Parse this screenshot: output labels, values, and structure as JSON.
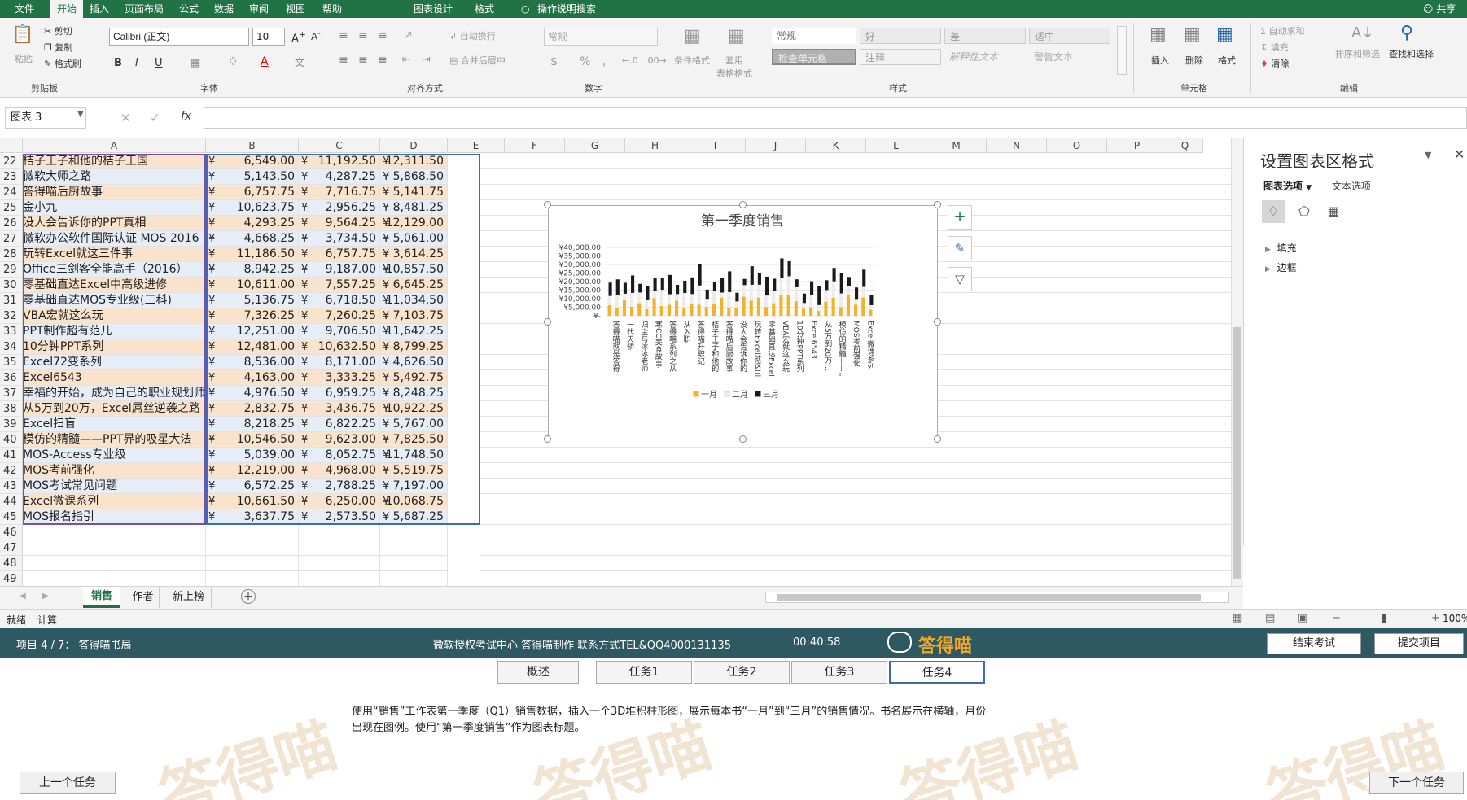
{
  "menu": {
    "items": [
      "文件",
      "开始",
      "插入",
      "页面布局",
      "公式",
      "数据",
      "审阅",
      "视图",
      "帮助",
      "图表设计",
      "格式",
      "操作说明搜索"
    ],
    "active": "开始",
    "share": "共享"
  },
  "ribbon": {
    "clipboard": {
      "paste": "粘贴",
      "cut": "剪切",
      "copy": "复制",
      "format_painter": "格式刷",
      "label": "剪贴板"
    },
    "font": {
      "name": "Calibri (正文)",
      "size": "10",
      "bold": "B",
      "italic": "I",
      "underline": "U",
      "label": "字体"
    },
    "alignment": {
      "wrap": "自动换行",
      "merge": "合并后居中",
      "label": "对齐方式"
    },
    "number": {
      "format": "常规",
      "currency": "$",
      "percent": "%",
      "comma": ",",
      "label": "数字"
    },
    "styles": {
      "conditional": "条件格式",
      "table": "套用\n表格格式",
      "cells": [
        "常规",
        "好",
        "差",
        "适中",
        "检查单元格",
        "注释",
        "解释性文本",
        "警告文本"
      ],
      "label": "样式"
    },
    "cells_group": {
      "insert": "插入",
      "delete": "删除",
      "format": "格式",
      "label": "单元格"
    },
    "editing": {
      "autosum": "自动求和",
      "fill": "填充",
      "clear": "清除",
      "sort": "排序和筛选",
      "find": "查找和选择",
      "label": "编辑"
    }
  },
  "formula_bar": {
    "name_box": "图表 3",
    "fx": "fx",
    "value": ""
  },
  "sheet": {
    "columns": [
      "A",
      "B",
      "C",
      "D",
      "E",
      "F",
      "G",
      "H",
      "I",
      "J",
      "K",
      "L",
      "M",
      "N",
      "O",
      "P",
      "Q"
    ],
    "rows": [
      {
        "n": "22",
        "a": "桔子王子和他的桔子王国",
        "b": "6,549.00",
        "c": "11,192.50",
        "d": "12,311.50"
      },
      {
        "n": "23",
        "a": "微软大师之路",
        "b": "5,143.50",
        "c": "4,287.25",
        "d": "5,868.50"
      },
      {
        "n": "24",
        "a": "答得喵后厨故事",
        "b": "6,757.75",
        "c": "7,716.75",
        "d": "5,141.75"
      },
      {
        "n": "25",
        "a": "金小九",
        "b": "10,623.75",
        "c": "2,956.25",
        "d": "8,481.25"
      },
      {
        "n": "26",
        "a": "没人会告诉你的PPT真相",
        "b": "4,293.25",
        "c": "9,564.25",
        "d": "12,129.00"
      },
      {
        "n": "27",
        "a": "微软办公软件国际认证 MOS 2016",
        "b": "4,668.25",
        "c": "3,734.50",
        "d": "5,061.00"
      },
      {
        "n": "28",
        "a": "玩转Excel就这三件事",
        "b": "11,186.50",
        "c": "6,757.75",
        "d": "3,614.25"
      },
      {
        "n": "29",
        "a": "Office三剑客全能高手（2016）",
        "b": "8,942.25",
        "c": "9,187.00",
        "d": "10,857.50"
      },
      {
        "n": "30",
        "a": "零基础直达Excel中高级进修",
        "b": "10,611.00",
        "c": "7,557.25",
        "d": "6,645.25"
      },
      {
        "n": "31",
        "a": "零基础直达MOS专业级(三科)",
        "b": "5,136.75",
        "c": "6,718.50",
        "d": "11,034.50"
      },
      {
        "n": "32",
        "a": "VBA宏就这么玩",
        "b": "7,326.25",
        "c": "7,260.25",
        "d": "7,103.75"
      },
      {
        "n": "33",
        "a": "PPT制作超有范儿",
        "b": "12,251.00",
        "c": "9,706.50",
        "d": "11,642.25"
      },
      {
        "n": "34",
        "a": "10分钟PPT系列",
        "b": "12,481.00",
        "c": "10,632.50",
        "d": "8,799.25"
      },
      {
        "n": "35",
        "a": "Excel72变系列",
        "b": "8,536.00",
        "c": "8,171.00",
        "d": "4,626.50"
      },
      {
        "n": "36",
        "a": "Excel6543",
        "b": "4,163.00",
        "c": "3,333.25",
        "d": "5,492.75"
      },
      {
        "n": "37",
        "a": "幸福的开始，成为自己的职业规划师",
        "b": "4,976.50",
        "c": "6,959.25",
        "d": "8,248.25"
      },
      {
        "n": "38",
        "a": "从5万到20万，Excel屌丝逆袭之路",
        "b": "2,832.75",
        "c": "3,436.75",
        "d": "10,922.25"
      },
      {
        "n": "39",
        "a": "Excel扫盲",
        "b": "8,218.25",
        "c": "6,822.25",
        "d": "5,767.00"
      },
      {
        "n": "40",
        "a": "模仿的精髓——PPT界的吸星大法",
        "b": "10,546.50",
        "c": "9,623.00",
        "d": "7,825.50"
      },
      {
        "n": "41",
        "a": "MOS-Access专业级",
        "b": "5,039.00",
        "c": "8,052.75",
        "d": "11,748.50"
      },
      {
        "n": "42",
        "a": "MOS考前强化",
        "b": "12,219.00",
        "c": "4,968.00",
        "d": "5,519.75"
      },
      {
        "n": "43",
        "a": "MOS考试常见问题",
        "b": "6,572.25",
        "c": "2,788.25",
        "d": "7,197.00"
      },
      {
        "n": "44",
        "a": "Excel微课系列",
        "b": "10,661.50",
        "c": "6,250.00",
        "d": "10,068.75"
      },
      {
        "n": "45",
        "a": "MOS报名指引",
        "b": "3,637.75",
        "c": "2,573.50",
        "d": "5,687.25"
      },
      {
        "n": "46",
        "a": "",
        "b": "",
        "c": "",
        "d": ""
      },
      {
        "n": "47",
        "a": "",
        "b": "",
        "c": "",
        "d": ""
      },
      {
        "n": "48",
        "a": "",
        "b": "",
        "c": "",
        "d": ""
      },
      {
        "n": "49",
        "a": "",
        "b": "",
        "c": "",
        "d": ""
      }
    ],
    "currency_symbol": "¥",
    "row_colors": [
      "#f9e3cd",
      "#e6edf7"
    ]
  },
  "chart_data": {
    "type": "bar",
    "stacked": true,
    "title": "第一季度销售",
    "yticks": [
      "¥40,000.00",
      "¥35,000.00",
      "¥30,000.00",
      "¥25,000.00",
      "¥20,000.00",
      "¥15,000.00",
      "¥10,000.00",
      "¥5,000.00",
      "¥-"
    ],
    "ylim": [
      0,
      40000
    ],
    "categories_visible": [
      "答得喵就是答得",
      "一代天骄",
      "归尘与冰冰老师",
      "寒CC美食故事",
      "答得喵系列之从",
      "从入职",
      "答得喵升职记",
      "桔子王子和他的",
      "答得喵后厨故事",
      "没人会告诉你的",
      "玩转Excel就这三",
      "零基础直达Excel",
      "VBA宏就这么玩",
      "10分钟PPT系列",
      "Excel6543",
      "从5万到20万…",
      "模仿的精髓——…",
      "MOS考前强化",
      "Excel微课系列"
    ],
    "series": [
      {
        "name": "一月",
        "color": "#f6b12b",
        "values": [
          6200,
          4800,
          9100,
          5300,
          7400,
          3900,
          10200,
          5800,
          6500,
          8800,
          4600,
          7100,
          6549,
          5143.5,
          6757.75,
          10623.75,
          4293.25,
          4668.25,
          11186.5,
          8942.25,
          10611,
          5136.75,
          7326.25,
          12251,
          12481,
          8536,
          4163,
          4976.5,
          2832.75,
          8218.25,
          10546.5,
          5039,
          12219,
          6572.25,
          10661.5,
          3637.75
        ]
      },
      {
        "name": "二月",
        "color": "#ececec",
        "values": [
          5400,
          7200,
          3800,
          8100,
          6200,
          5200,
          4300,
          9400,
          6100,
          3900,
          8700,
          5600,
          11192.5,
          4287.25,
          7716.75,
          2956.25,
          9564.25,
          3734.5,
          6757.75,
          9187,
          7557.25,
          6718.5,
          7260.25,
          9706.5,
          10632.5,
          8171,
          3333.25,
          6959.25,
          3436.75,
          6822.25,
          9623,
          8052.75,
          4968,
          2788.25,
          6250,
          2573.5
        ]
      },
      {
        "name": "三月",
        "color": "#1a1a1a",
        "values": [
          7800,
          9300,
          6400,
          10200,
          5100,
          8300,
          7600,
          6900,
          11300,
          5400,
          7200,
          9800,
          12311.5,
          5868.5,
          5141.75,
          8481.25,
          12129,
          5061,
          3614.25,
          10857.5,
          6645.25,
          11034.5,
          7103.75,
          11642.25,
          8799.25,
          4626.5,
          5492.75,
          8248.25,
          10922.25,
          5767,
          7825.5,
          11748.5,
          5519.75,
          7197,
          10068.75,
          5687.25
        ]
      }
    ],
    "legend_position": "bottom",
    "grid": true
  },
  "panel": {
    "title": "设置图表区格式",
    "tab_options": "图表选项",
    "tab_text": "文本选项",
    "fill": "填充",
    "border": "边框"
  },
  "sheet_tabs": {
    "tabs": [
      "销售",
      "作者",
      "新上榜"
    ],
    "active": "销售"
  },
  "status": {
    "ready": "就绪",
    "calc": "计算",
    "zoom": "100%"
  },
  "exam": {
    "project": "项目 4 / 7：  答得喵书局",
    "center": "微软授权考试中心 答得喵制作 联系方式TEL&QQ4000131135",
    "timer": "00:40:58",
    "brand": "答得喵",
    "end_exam": "结束考试",
    "submit": "提交项目",
    "tasks": [
      "概述",
      "任务1",
      "任务2",
      "任务3",
      "任务4"
    ],
    "active_task": "任务4",
    "instruction_1": "使用“销售”工作表第一季度（Q1）销售数据，插入一个3D堆积柱形图，展示每本书“一月”到“三月”的销售情况。书名展示在横轴，月份",
    "instruction_2": "出现在图例。使用“第一季度销售”作为图表标题。",
    "prev": "上一个任务",
    "next": "下一个任务"
  }
}
